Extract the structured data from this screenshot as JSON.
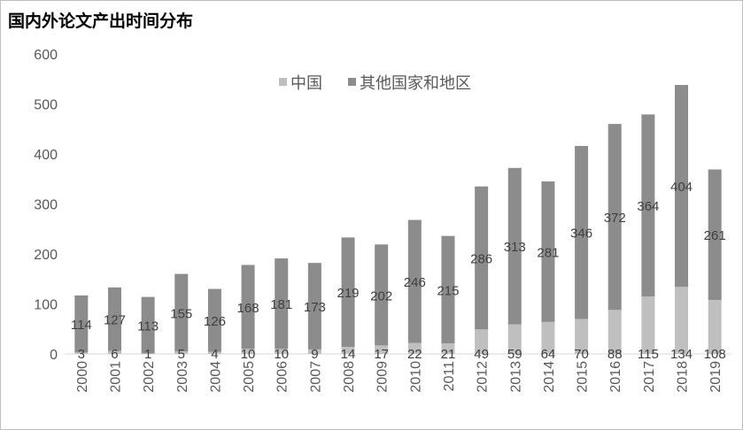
{
  "chart_data": {
    "type": "bar",
    "stacked": true,
    "title": "国内外论文产出时间分布",
    "categories": [
      "2000",
      "2001",
      "2002",
      "2003",
      "2004",
      "2005",
      "2006",
      "2007",
      "2008",
      "2009",
      "2010",
      "2011",
      "2012",
      "2013",
      "2014",
      "2015",
      "2016",
      "2017",
      "2018",
      "2019"
    ],
    "series": [
      {
        "name": "中国",
        "color": "#bfbfbf",
        "values": [
          3,
          6,
          1,
          5,
          4,
          10,
          10,
          9,
          14,
          17,
          22,
          21,
          49,
          59,
          64,
          70,
          88,
          115,
          134,
          108
        ]
      },
      {
        "name": "其他国家和地区",
        "color": "#8c8c8c",
        "values": [
          114,
          127,
          113,
          155,
          126,
          168,
          181,
          173,
          219,
          202,
          246,
          215,
          286,
          313,
          281,
          346,
          372,
          364,
          404,
          261
        ]
      }
    ],
    "ylim": [
      0,
      600
    ],
    "yticks": [
      0,
      100,
      200,
      300,
      400,
      500,
      600
    ],
    "grid": false,
    "legend": "top-center",
    "data_labels": true
  }
}
